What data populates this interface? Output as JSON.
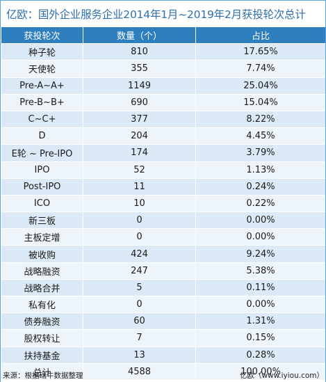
{
  "title": "亿欧：国外企业服务企业2014年1月~2019年2月获投轮次总计",
  "table": {
    "headers": [
      "获投轮次",
      "数量（个）",
      "占比"
    ],
    "rows": [
      {
        "round": "种子轮",
        "count": "810",
        "share": "17.65%"
      },
      {
        "round": "天使轮",
        "count": "355",
        "share": "7.74%"
      },
      {
        "round": "Pre-A~A+",
        "count": "1149",
        "share": "25.04%"
      },
      {
        "round": "Pre-B~B+",
        "count": "690",
        "share": "15.04%"
      },
      {
        "round": "C~C+",
        "count": "377",
        "share": "8.22%"
      },
      {
        "round": "D",
        "count": "204",
        "share": "4.45%"
      },
      {
        "round": "E轮 ~ Pre-IPO",
        "count": "174",
        "share": "3.79%"
      },
      {
        "round": "IPO",
        "count": "52",
        "share": "1.13%"
      },
      {
        "round": "Post-IPO",
        "count": "11",
        "share": "0.24%"
      },
      {
        "round": "ICO",
        "count": "10",
        "share": "0.22%"
      },
      {
        "round": "新三板",
        "count": "0",
        "share": "0.00%"
      },
      {
        "round": "主板定增",
        "count": "0",
        "share": "0.00%"
      },
      {
        "round": "被收购",
        "count": "424",
        "share": "9.24%"
      },
      {
        "round": "战略融资",
        "count": "247",
        "share": "5.38%"
      },
      {
        "round": "战略合并",
        "count": "5",
        "share": "0.11%"
      },
      {
        "round": "私有化",
        "count": "0",
        "share": "0.00%"
      },
      {
        "round": "债券融资",
        "count": "60",
        "share": "1.31%"
      },
      {
        "round": "股权转让",
        "count": "7",
        "share": "0.15%"
      },
      {
        "round": "扶持基金",
        "count": "13",
        "share": "0.28%"
      },
      {
        "round": "总计",
        "count": "4588",
        "share": "100.00%"
      }
    ]
  },
  "footer": {
    "source": "来源：根据瑞牛数据整理",
    "credit": "亿欧（www.iyiou.com）"
  },
  "colors": {
    "header_bg": "#2f7fbf",
    "row_odd": "#dbeaf6",
    "row_even": "#edf5fb",
    "title_text": "#2d6fae"
  }
}
